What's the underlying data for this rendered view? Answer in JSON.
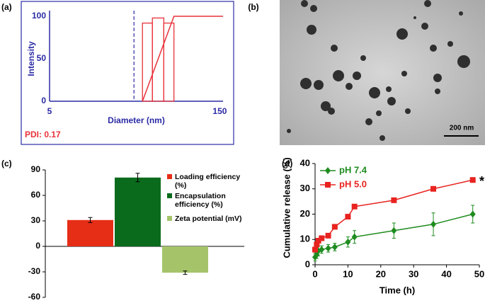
{
  "chart_data": [
    {
      "type": "histogram",
      "label": "(a)",
      "xlabel": "Diameter (nm)",
      "ylabel": "Intensity",
      "annotation": "PDI: 0.17",
      "xscale": "log",
      "xlim": [
        5,
        160
      ],
      "xticks": [
        5,
        150
      ],
      "ylim": [
        0,
        100
      ],
      "yticks": [
        0,
        50,
        100
      ],
      "bins": [
        32,
        39,
        49,
        60
      ],
      "values": [
        92,
        98,
        92
      ],
      "color": "#e8313a",
      "axis_color": "#2b2ba6",
      "annotation_color": "#e8313a",
      "line": {
        "x": [
          32,
          60,
          160
        ],
        "values": [
          0,
          100,
          100
        ],
        "color": "#e8313a"
      },
      "reference_x": 27
    },
    {
      "type": "bar",
      "label": "(c)",
      "categories": [
        null
      ],
      "ylim": [
        -60,
        90
      ],
      "yticks": [
        -60,
        -30,
        0,
        30,
        60,
        90
      ],
      "legend": "upper right",
      "series": [
        {
          "name": "Loading efficiency (%)",
          "color": "#e62d16",
          "values": [
            31
          ],
          "errors": [
            3
          ]
        },
        {
          "name": "Encapsulation efficiency (%)",
          "color": "#0b6b1c",
          "values": [
            81
          ],
          "errors": [
            5
          ]
        },
        {
          "name": "Zeta potential (mV)",
          "color": "#a5c46a",
          "values": [
            -31
          ],
          "errors": [
            2
          ]
        }
      ]
    },
    {
      "type": "line",
      "label": "(d)",
      "xlabel": "Time (h)",
      "ylabel": "Cumulative release (%)",
      "annotation": "*",
      "legend": "upper left",
      "xlim": [
        0,
        50
      ],
      "xticks": [
        0,
        10,
        20,
        30,
        40,
        50
      ],
      "ylim": [
        0,
        40
      ],
      "yticks": [
        0,
        10,
        20,
        30,
        40
      ],
      "series": [
        {
          "name": "pH 7.4",
          "color": "#1e8c1e",
          "marker": "diamond",
          "x": [
            0,
            0.5,
            1,
            2,
            4,
            6,
            10,
            12,
            24,
            36,
            48
          ],
          "values": [
            3,
            4,
            5.5,
            6,
            6.5,
            7,
            9,
            11,
            13.5,
            16,
            20
          ],
          "errors": [
            1.5,
            1.5,
            2,
            1.5,
            1.5,
            1.5,
            2,
            2.5,
            3,
            4.5,
            3.5
          ]
        },
        {
          "name": "pH 5.0",
          "color": "#e8231f",
          "marker": "square",
          "x": [
            0,
            0.5,
            1,
            2,
            4,
            6,
            10,
            12,
            24,
            36,
            48
          ],
          "values": [
            6,
            8,
            9.5,
            10.5,
            11.5,
            15,
            19,
            23,
            25.5,
            30,
            33.5
          ]
        }
      ]
    }
  ],
  "images": [
    {
      "label": "(b)",
      "scale_bar": "200 nm"
    }
  ]
}
